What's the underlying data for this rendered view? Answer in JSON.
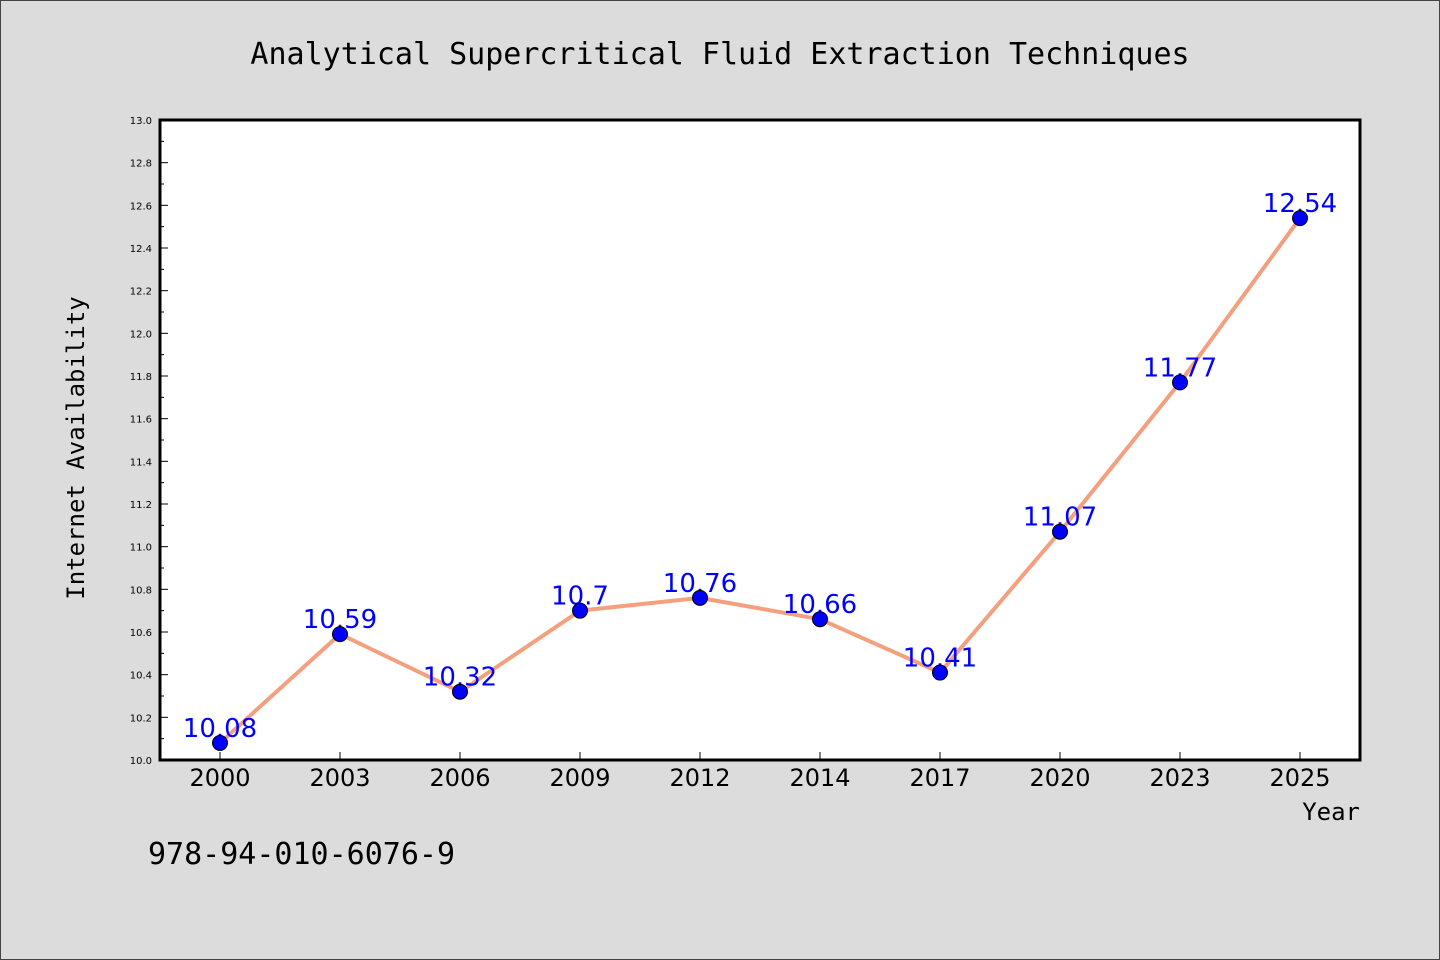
{
  "chart_data": {
    "type": "line",
    "title": "Analytical Supercritical Fluid Extraction Techniques",
    "xlabel": "Year",
    "ylabel": "Internet Availability",
    "categories": [
      "2000",
      "2003",
      "2006",
      "2009",
      "2012",
      "2014",
      "2017",
      "2020",
      "2023",
      "2025"
    ],
    "values": [
      10.08,
      10.59,
      10.32,
      10.7,
      10.76,
      10.66,
      10.41,
      11.07,
      11.77,
      12.54
    ],
    "data_labels": [
      "10.08",
      "10.59",
      "10.32",
      "10.7",
      "10.76",
      "10.66",
      "10.41",
      "11.07",
      "11.77",
      "12.54"
    ],
    "ylim": [
      10.0,
      13.0
    ],
    "y_ticks": [
      "10.0",
      "10.2",
      "10.4",
      "10.6",
      "10.8",
      "11.0",
      "11.2",
      "11.4",
      "11.6",
      "11.8",
      "12.0",
      "12.2",
      "12.4",
      "12.6",
      "12.8",
      "13.0"
    ],
    "grid": false,
    "line_color": "#f4a07f",
    "marker_color": "#0000ff",
    "label_color": "#0000ff"
  },
  "footer": {
    "identifier": "978-94-010-6076-9"
  }
}
